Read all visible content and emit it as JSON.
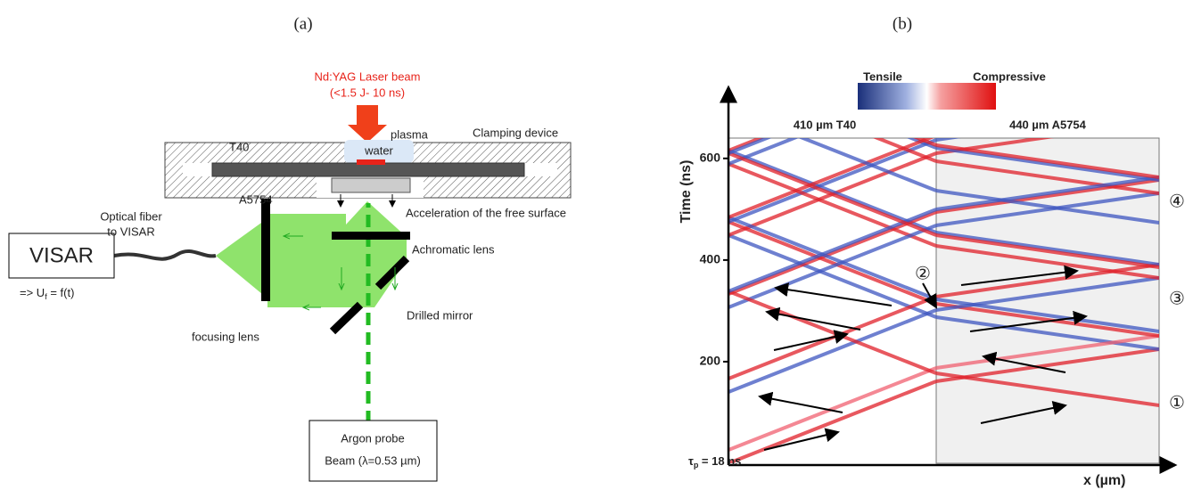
{
  "panel_a": {
    "label": "(a)",
    "laser_title": "Nd:YAG Laser beam",
    "laser_spec": "(<1.5 J- 10 ns)",
    "t40": "T40",
    "plasma": "plasma",
    "water": "water",
    "clamping": "Clamping device",
    "a5754": "A5754",
    "acceleration": "Acceleration of the free surface",
    "achromatic": "Achromatic lens",
    "fiber_1": "Optical fiber",
    "fiber_2": "to VISAR",
    "visar": "VISAR",
    "output": [
      "=> U",
      "f",
      " = f(t)"
    ],
    "mirror": "Drilled mirror",
    "focusing": "focusing lens",
    "probe_1": "Argon probe",
    "probe_2": "Beam (λ=0.53 µm)"
  },
  "panel_b": {
    "label": "(b)",
    "tensile": "Tensile",
    "compressive": "Compressive",
    "left_layer": "410 µm T40",
    "right_layer": "440 µm A5754",
    "y_label": "Time (ns)",
    "x_label": "x (µm)",
    "ylim": [
      0,
      640
    ],
    "yticks": [
      200,
      400,
      600
    ],
    "tau": [
      "τ",
      "p",
      " = 18 ns"
    ],
    "markers": [
      "①",
      "②",
      "③",
      "④"
    ]
  }
}
